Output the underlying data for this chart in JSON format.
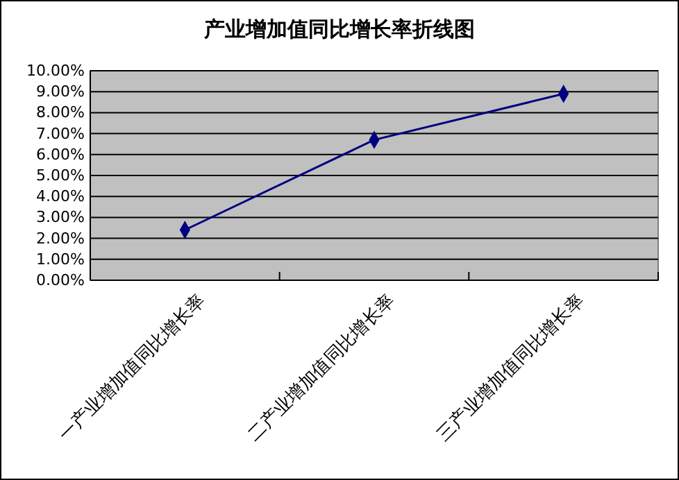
{
  "chart_data": {
    "type": "line",
    "title": "产业增加值同比增长率折线图",
    "categories": [
      "一产业增加值同比增长率",
      "二产业增加值同比增长率",
      "三产业增加值同比增长率"
    ],
    "series": [
      {
        "color": "#000080",
        "values": [
          2.4,
          6.7,
          8.9
        ]
      }
    ],
    "ylim": [
      0,
      10
    ],
    "yticks": [
      {
        "value": 0,
        "label": "0.00%"
      },
      {
        "value": 1,
        "label": "1.00%"
      },
      {
        "value": 2,
        "label": "2.00%"
      },
      {
        "value": 3,
        "label": "3.00%"
      },
      {
        "value": 4,
        "label": "4.00%"
      },
      {
        "value": 5,
        "label": "5.00%"
      },
      {
        "value": 6,
        "label": "6.00%"
      },
      {
        "value": 7,
        "label": "7.00%"
      },
      {
        "value": 8,
        "label": "8.00%"
      },
      {
        "value": 9,
        "label": "9.00%"
      },
      {
        "value": 10,
        "label": "10.00%"
      }
    ],
    "grid": "y",
    "marker": "diamond"
  }
}
